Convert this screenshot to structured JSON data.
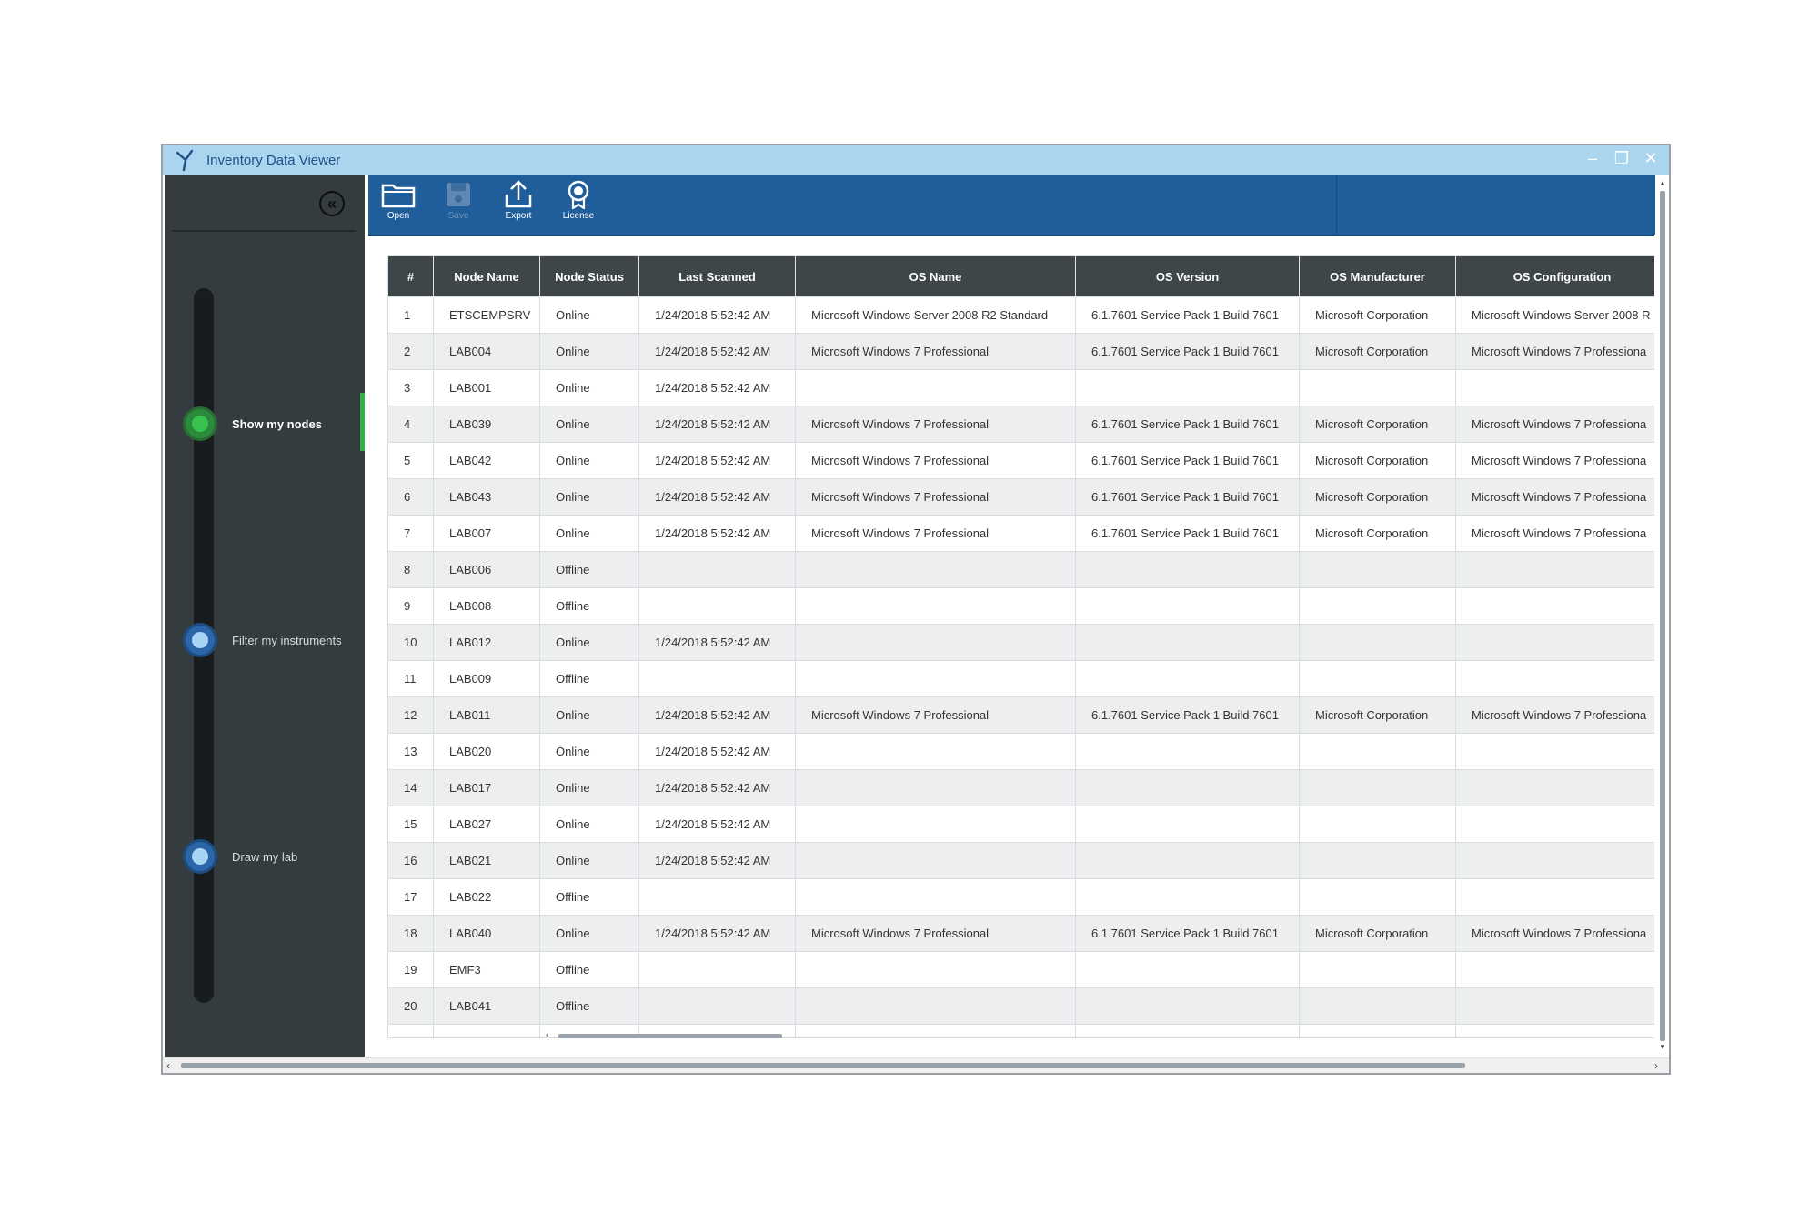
{
  "window": {
    "title": "Inventory Data Viewer",
    "controls": {
      "minimize": "–",
      "restore": "❐",
      "close": "✕"
    }
  },
  "sidebar": {
    "collapse_icon": "«",
    "steps": [
      {
        "label": "Show my nodes",
        "active": true
      },
      {
        "label": "Filter my instruments",
        "active": false
      },
      {
        "label": "Draw my lab",
        "active": false
      }
    ]
  },
  "toolbar": {
    "open": "Open",
    "save": "Save",
    "export": "Export",
    "license": "License"
  },
  "table": {
    "columns": [
      "#",
      "Node Name",
      "Node Status",
      "Last Scanned",
      "OS Name",
      "OS Version",
      "OS Manufacturer",
      "OS Configuration"
    ],
    "rows": [
      [
        "1",
        "ETSCEMPSRV",
        "Online",
        "1/24/2018 5:52:42 AM",
        "Microsoft Windows Server 2008 R2 Standard",
        "6.1.7601 Service Pack 1 Build 7601",
        "Microsoft Corporation",
        "Microsoft Windows Server 2008 R"
      ],
      [
        "2",
        "LAB004",
        "Online",
        "1/24/2018 5:52:42 AM",
        "Microsoft Windows 7 Professional",
        "6.1.7601 Service Pack 1 Build 7601",
        "Microsoft Corporation",
        "Microsoft Windows 7 Professiona"
      ],
      [
        "3",
        "LAB001",
        "Online",
        "1/24/2018 5:52:42 AM",
        "",
        "",
        "",
        ""
      ],
      [
        "4",
        "LAB039",
        "Online",
        "1/24/2018 5:52:42 AM",
        "Microsoft Windows 7 Professional",
        "6.1.7601 Service Pack 1 Build 7601",
        "Microsoft Corporation",
        "Microsoft Windows 7 Professiona"
      ],
      [
        "5",
        "LAB042",
        "Online",
        "1/24/2018 5:52:42 AM",
        "Microsoft Windows 7 Professional",
        "6.1.7601 Service Pack 1 Build 7601",
        "Microsoft Corporation",
        "Microsoft Windows 7 Professiona"
      ],
      [
        "6",
        "LAB043",
        "Online",
        "1/24/2018 5:52:42 AM",
        "Microsoft Windows 7 Professional",
        "6.1.7601 Service Pack 1 Build 7601",
        "Microsoft Corporation",
        "Microsoft Windows 7 Professiona"
      ],
      [
        "7",
        "LAB007",
        "Online",
        "1/24/2018 5:52:42 AM",
        "Microsoft Windows 7 Professional",
        "6.1.7601 Service Pack 1 Build 7601",
        "Microsoft Corporation",
        "Microsoft Windows 7 Professiona"
      ],
      [
        "8",
        "LAB006",
        "Offline",
        "",
        "",
        "",
        "",
        ""
      ],
      [
        "9",
        "LAB008",
        "Offline",
        "",
        "",
        "",
        "",
        ""
      ],
      [
        "10",
        "LAB012",
        "Online",
        "1/24/2018 5:52:42 AM",
        "",
        "",
        "",
        ""
      ],
      [
        "11",
        "LAB009",
        "Offline",
        "",
        "",
        "",
        "",
        ""
      ],
      [
        "12",
        "LAB011",
        "Online",
        "1/24/2018 5:52:42 AM",
        "Microsoft Windows 7 Professional",
        "6.1.7601 Service Pack 1 Build 7601",
        "Microsoft Corporation",
        "Microsoft Windows 7 Professiona"
      ],
      [
        "13",
        "LAB020",
        "Online",
        "1/24/2018 5:52:42 AM",
        "",
        "",
        "",
        ""
      ],
      [
        "14",
        "LAB017",
        "Online",
        "1/24/2018 5:52:42 AM",
        "",
        "",
        "",
        ""
      ],
      [
        "15",
        "LAB027",
        "Online",
        "1/24/2018 5:52:42 AM",
        "",
        "",
        "",
        ""
      ],
      [
        "16",
        "LAB021",
        "Online",
        "1/24/2018 5:52:42 AM",
        "",
        "",
        "",
        ""
      ],
      [
        "17",
        "LAB022",
        "Offline",
        "",
        "",
        "",
        "",
        ""
      ],
      [
        "18",
        "LAB040",
        "Online",
        "1/24/2018 5:52:42 AM",
        "Microsoft Windows 7 Professional",
        "6.1.7601 Service Pack 1 Build 7601",
        "Microsoft Corporation",
        "Microsoft Windows 7 Professiona"
      ],
      [
        "19",
        "EMF3",
        "Offline",
        "",
        "",
        "",
        "",
        ""
      ],
      [
        "20",
        "LAB041",
        "Offline",
        "",
        "",
        "",
        "",
        ""
      ]
    ]
  },
  "scroll": {
    "left_arrow": "‹",
    "right_arrow": "›",
    "up_arrow": "▴",
    "down_arrow": "▾"
  },
  "colors": {
    "titlebar": "#a9d5ef",
    "toolbar": "#1f5d9b",
    "sidebar": "#343c40",
    "active_step": "#34b24a",
    "inactive_step": "#1f5d9b",
    "header": "#3e4649"
  }
}
